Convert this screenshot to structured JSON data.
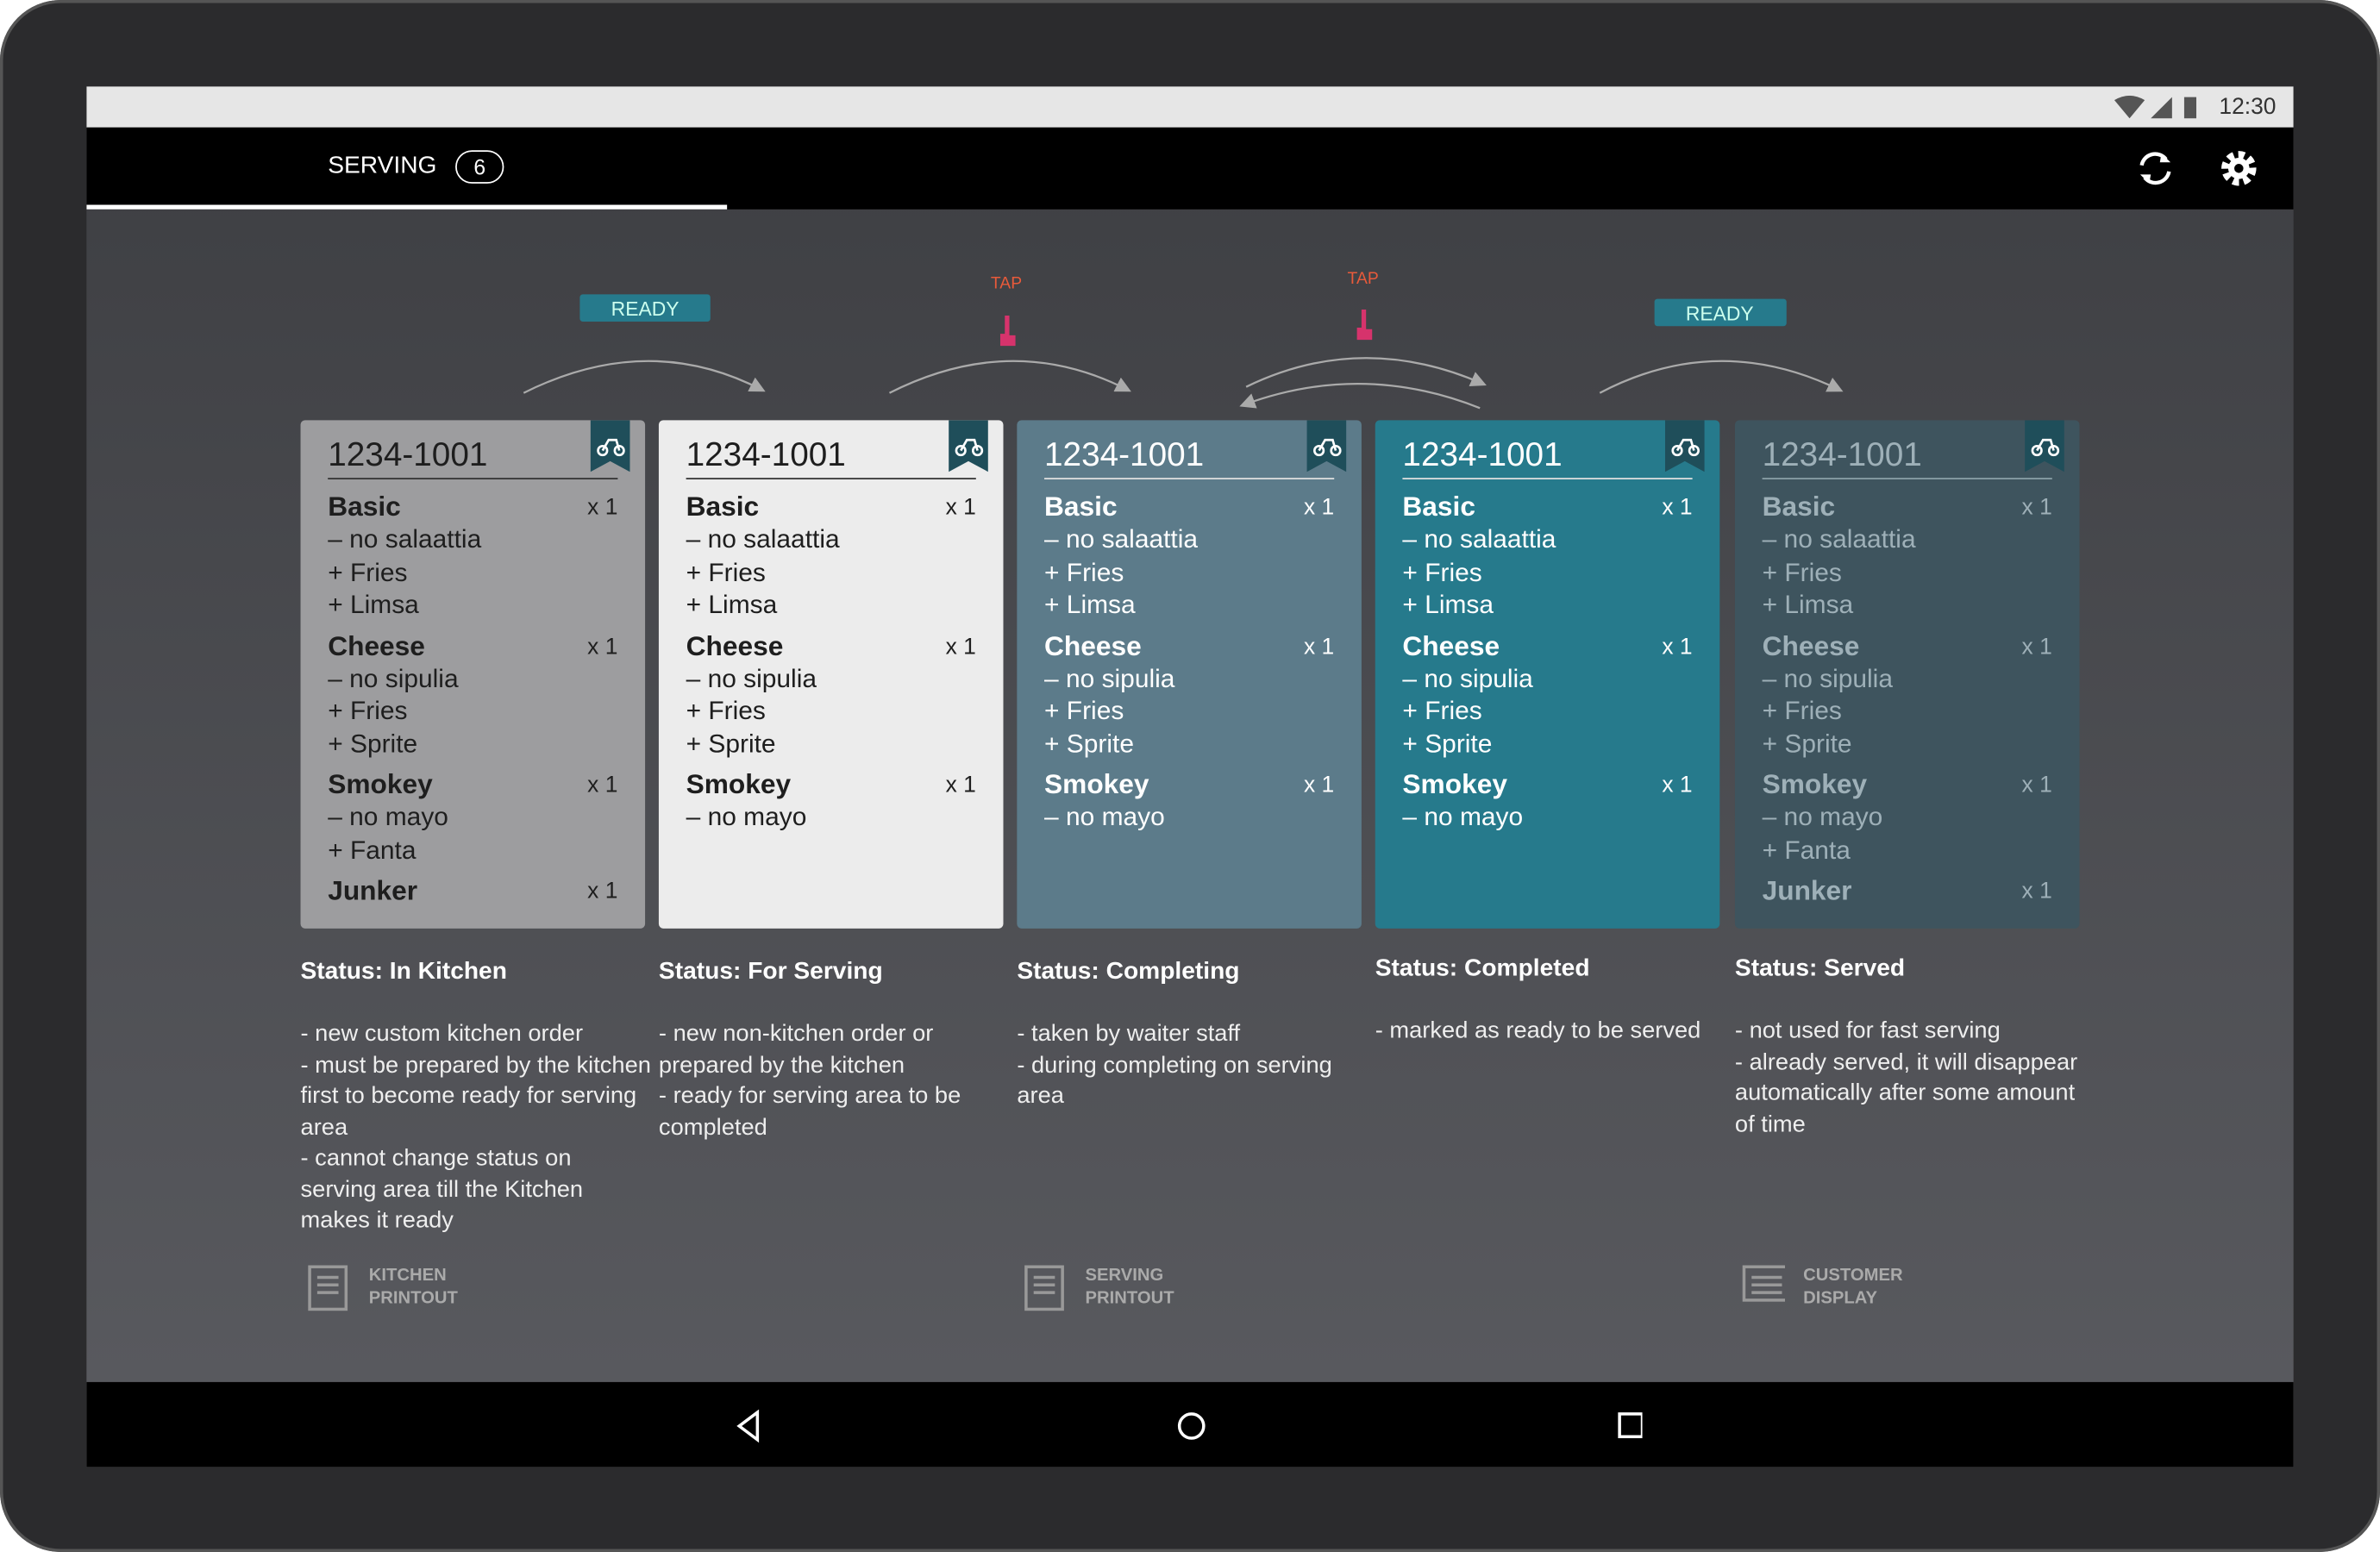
{
  "status_bar": {
    "time": "12:30"
  },
  "tab": {
    "label": "SERVING",
    "count": "6"
  },
  "flow_labels": [
    "READY",
    "TAP",
    "TAP",
    "READY"
  ],
  "cards": [
    {
      "id": "1234-1001",
      "items": [
        {
          "name": "Basic",
          "qty": "x 1",
          "mods": [
            "– no salaattia",
            "+ Fries",
            "+ Limsa"
          ]
        },
        {
          "name": "Cheese",
          "qty": "x 1",
          "mods": [
            "– no sipulia",
            "+ Fries",
            "+ Sprite"
          ]
        },
        {
          "name": "Smokey",
          "qty": "x 1",
          "mods": [
            "– no mayo",
            "+ Fanta"
          ]
        },
        {
          "name": "Junker",
          "qty": "x 1",
          "mods": []
        }
      ],
      "status": "Status: In Kitchen",
      "description": [
        "- new custom kitchen order",
        "- must be prepared by the kitchen first to become ready for serving area",
        "- cannot change status on serving area till the Kitchen makes it ready"
      ],
      "footer": [
        "KITCHEN",
        "PRINTOUT"
      ]
    },
    {
      "id": "1234-1001",
      "items": [
        {
          "name": "Basic",
          "qty": "x 1",
          "mods": [
            "– no salaattia",
            "+ Fries",
            "+ Limsa"
          ]
        },
        {
          "name": "Cheese",
          "qty": "x 1",
          "mods": [
            "– no sipulia",
            "+ Fries",
            "+ Sprite"
          ]
        },
        {
          "name": "Smokey",
          "qty": "x 1",
          "mods": [
            "– no mayo"
          ]
        }
      ],
      "status": "Status: For Serving",
      "description": [
        "- new non-kitchen order or prepared by the kitchen",
        "- ready for serving area to be completed"
      ]
    },
    {
      "id": "1234-1001",
      "items": [
        {
          "name": "Basic",
          "qty": "x 1",
          "mods": [
            "– no salaattia",
            "+ Fries",
            "+ Limsa"
          ]
        },
        {
          "name": "Cheese",
          "qty": "x 1",
          "mods": [
            "– no sipulia",
            "+ Fries",
            "+ Sprite"
          ]
        },
        {
          "name": "Smokey",
          "qty": "x 1",
          "mods": [
            "– no mayo"
          ]
        }
      ],
      "status": "Status:  Completing",
      "description": [
        "- taken by waiter staff",
        "- during completing on serving area"
      ],
      "footer": [
        "SERVING",
        "PRINTOUT"
      ]
    },
    {
      "id": "1234-1001",
      "items": [
        {
          "name": "Basic",
          "qty": "x 1",
          "mods": [
            "– no salaattia",
            "+ Fries",
            "+ Limsa"
          ]
        },
        {
          "name": "Cheese",
          "qty": "x 1",
          "mods": [
            "– no sipulia",
            "+ Fries",
            "+ Sprite"
          ]
        },
        {
          "name": "Smokey",
          "qty": "x 1",
          "mods": [
            "– no mayo"
          ]
        }
      ],
      "status": "Status: Completed",
      "description": [
        "- marked as ready to be served"
      ]
    },
    {
      "id": "1234-1001",
      "items": [
        {
          "name": "Basic",
          "qty": "x 1",
          "mods": [
            "– no salaattia",
            "+ Fries",
            "+ Limsa"
          ]
        },
        {
          "name": "Cheese",
          "qty": "x 1",
          "mods": [
            "– no sipulia",
            "+ Fries",
            "+ Sprite"
          ]
        },
        {
          "name": "Smokey",
          "qty": "x 1",
          "mods": [
            "– no mayo",
            "+ Fanta"
          ]
        },
        {
          "name": "Junker",
          "qty": "x 1",
          "mods": []
        }
      ],
      "status": "Status: Served",
      "description": [
        "- not used for fast serving",
        "- already served, it will disappear automatically after some amount of time"
      ],
      "footer": [
        "CUSTOMER",
        "DISPLAY"
      ]
    }
  ]
}
